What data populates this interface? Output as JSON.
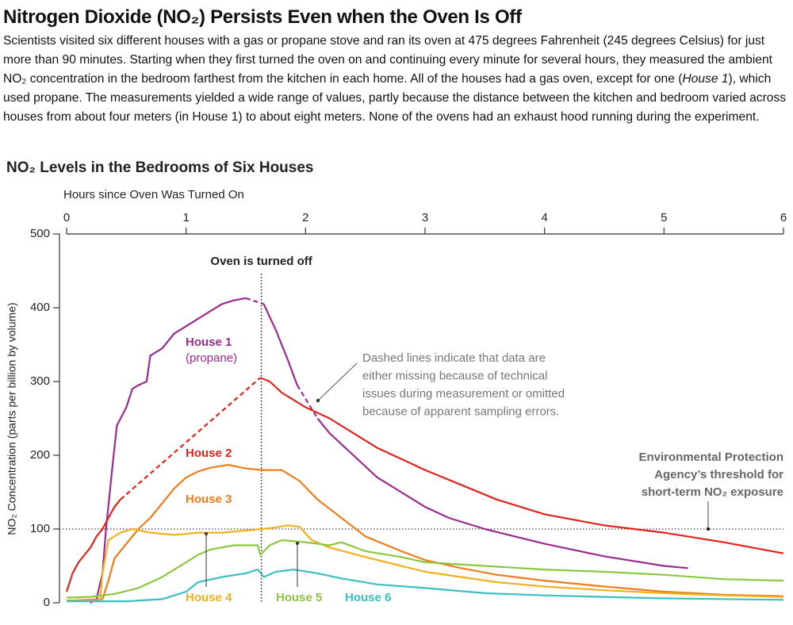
{
  "header": {
    "title": "Nitrogen Dioxide (NO₂) Persists Even when the Oven Is Off",
    "intro_before": "Scientists visited six different houses with a gas or propane stove and ran its oven at 475 degrees Fahrenheit (245 degrees Celsius) for just more than 90 minutes. Starting when they first turned the oven on and continuing every minute for several hours, they measured the ambient NO₂ concentration in the bedroom farthest from the kitchen in each home. All of the houses had a gas oven, except for one (",
    "intro_italic": "House 1",
    "intro_after": "), which used propane. The measurements yielded a wide range of values, partly because the distance between the kitchen and bedroom varied across houses from about four meters (in House 1) to about eight meters. None of the ovens had an exhaust hood running during the experiment."
  },
  "chart_data": {
    "type": "line",
    "title": "NO₂ Levels in the Bedrooms of Six Houses",
    "x_label": "Hours since Oven Was Turned On",
    "y_label": "NO₂ Concentration (parts per billion by volume)",
    "xlim": [
      0,
      6
    ],
    "xticks": [
      0,
      1,
      2,
      3,
      4,
      5,
      6
    ],
    "ylim": [
      0,
      500
    ],
    "yticks": [
      0,
      100,
      200,
      300,
      400,
      500
    ],
    "oven_off": {
      "x": 1.63,
      "label": "Oven is turned off"
    },
    "threshold": {
      "y": 100,
      "lines": [
        "Environmental Protection",
        "Agency’s threshold for",
        "short-term NO₂ exposure"
      ]
    },
    "dashed_note": [
      "Dashed lines indicate that data are",
      "either missing because of technical",
      "issues during measurement or omitted",
      "because of apparent sampling errors."
    ],
    "series": [
      {
        "name": "House 1",
        "sublabel": "(propane)",
        "color": "#9c2a8e",
        "x": [
          0.2,
          0.25,
          0.3,
          0.33,
          0.38,
          0.42,
          0.5,
          0.55,
          0.6,
          0.67,
          0.7,
          0.8,
          0.9,
          1.0,
          1.1,
          1.2,
          1.3,
          1.4,
          1.5,
          1.58,
          1.65,
          1.75,
          1.85,
          1.93,
          2.0,
          2.1,
          2.2,
          2.4,
          2.6,
          2.8,
          3.0,
          3.2,
          3.5,
          4.0,
          4.5,
          5.0,
          5.2
        ],
        "values": [
          0,
          5,
          40,
          100,
          180,
          240,
          265,
          290,
          295,
          300,
          335,
          345,
          365,
          375,
          385,
          395,
          405,
          410,
          413,
          null,
          405,
          370,
          330,
          295,
          null,
          250,
          230,
          200,
          170,
          150,
          130,
          115,
          100,
          80,
          63,
          50,
          47
        ]
      },
      {
        "name": "House 2",
        "color": "#e2231a",
        "x": [
          0,
          0.05,
          0.1,
          0.15,
          0.2,
          0.25,
          0.3,
          0.35,
          0.4,
          0.45,
          1.0,
          1.62,
          1.7,
          1.8,
          1.9,
          2.0,
          2.2,
          2.4,
          2.6,
          2.8,
          3.0,
          3.3,
          3.6,
          4.0,
          4.5,
          5.0,
          5.5,
          6.0
        ],
        "values": [
          15,
          40,
          55,
          65,
          75,
          90,
          100,
          115,
          130,
          140,
          null,
          305,
          300,
          285,
          275,
          265,
          250,
          230,
          210,
          195,
          180,
          160,
          140,
          120,
          105,
          95,
          82,
          67
        ]
      },
      {
        "name": "House 3",
        "color": "#f07d1a",
        "x": [
          0,
          0.3,
          0.35,
          0.4,
          0.5,
          0.6,
          0.7,
          0.8,
          0.9,
          1.0,
          1.1,
          1.2,
          1.35,
          1.5,
          1.65,
          1.8,
          1.95,
          2.1,
          2.3,
          2.5,
          2.8,
          3.0,
          3.3,
          3.6,
          4.0,
          4.5,
          5.0,
          5.5,
          6.0
        ],
        "values": [
          3,
          5,
          30,
          60,
          80,
          100,
          115,
          135,
          155,
          170,
          178,
          183,
          187,
          182,
          180,
          180,
          165,
          140,
          115,
          90,
          70,
          58,
          47,
          38,
          30,
          22,
          15,
          11,
          9
        ]
      },
      {
        "name": "House 4",
        "color": "#f2b01e",
        "x": [
          0,
          0.28,
          0.3,
          0.35,
          0.45,
          0.55,
          0.7,
          0.9,
          1.1,
          1.3,
          1.5,
          1.7,
          1.85,
          1.95,
          2.05,
          2.2,
          2.5,
          2.8,
          3.0,
          3.3,
          3.6,
          4.0,
          4.5,
          5.0,
          5.5,
          6.0
        ],
        "values": [
          3,
          3,
          40,
          85,
          95,
          100,
          95,
          92,
          95,
          95,
          98,
          101,
          105,
          103,
          85,
          75,
          62,
          50,
          42,
          35,
          28,
          22,
          17,
          13,
          10,
          8
        ]
      },
      {
        "name": "House 5",
        "color": "#8dc63f",
        "x": [
          0,
          0.2,
          0.4,
          0.6,
          0.8,
          1.0,
          1.1,
          1.2,
          1.4,
          1.6,
          1.62,
          1.7,
          1.8,
          2.0,
          2.2,
          2.3,
          2.5,
          2.8,
          3.0,
          3.5,
          4.0,
          4.5,
          5.0,
          5.5,
          6.0
        ],
        "values": [
          7,
          8,
          12,
          20,
          35,
          55,
          65,
          72,
          78,
          78,
          65,
          78,
          85,
          82,
          78,
          82,
          70,
          62,
          55,
          50,
          45,
          42,
          38,
          32,
          30
        ]
      },
      {
        "name": "House 6",
        "color": "#3dbfbf",
        "x": [
          0,
          0.5,
          0.8,
          1.0,
          1.1,
          1.3,
          1.5,
          1.6,
          1.65,
          1.75,
          1.9,
          2.1,
          2.3,
          2.6,
          3.0,
          3.5,
          4.0,
          4.5,
          5.0,
          6.0
        ],
        "values": [
          2,
          2,
          5,
          15,
          28,
          35,
          40,
          45,
          35,
          42,
          45,
          40,
          33,
          25,
          20,
          13,
          10,
          8,
          6,
          4
        ]
      }
    ]
  }
}
